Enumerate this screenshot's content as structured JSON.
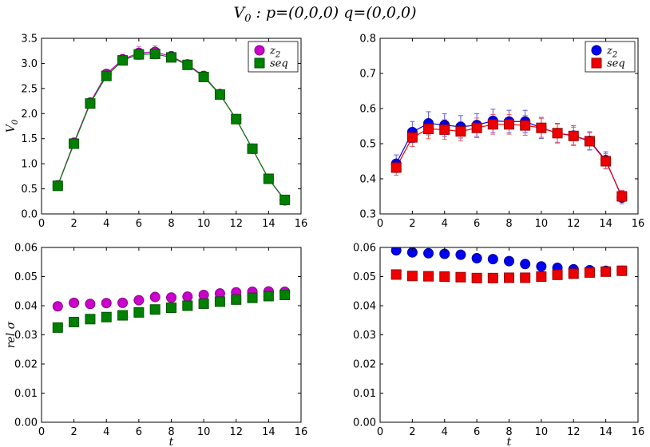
{
  "figure": {
    "title": "V₀ : p=(0,0,0)  q=(0,0,0)"
  },
  "chart_data": [
    {
      "type": "scatter",
      "panel": "top-left",
      "title": "",
      "xlabel": "",
      "ylabel": "V₀",
      "xlim": [
        0,
        16
      ],
      "ylim": [
        0,
        3.5
      ],
      "xticks": [
        0,
        2,
        4,
        6,
        8,
        10,
        12,
        14,
        16
      ],
      "yticks": [
        0.0,
        0.5,
        1.0,
        1.5,
        2.0,
        2.5,
        3.0,
        3.5
      ],
      "ytick_decimals": 1,
      "connect_lines": true,
      "legend": "top-right",
      "x": [
        1,
        2,
        3,
        4,
        5,
        6,
        7,
        8,
        9,
        10,
        11,
        12,
        13,
        14,
        15
      ],
      "series": [
        {
          "name": "z₂",
          "marker": "circle",
          "color": "#cc00cc",
          "values": [
            0.57,
            1.42,
            2.22,
            2.79,
            3.08,
            3.21,
            3.23,
            3.14,
            2.98,
            2.75,
            2.39,
            1.89,
            1.3,
            0.7,
            0.27
          ],
          "errors": [
            0.02,
            0.04,
            0.06,
            0.07,
            0.1,
            0.12,
            0.12,
            0.1,
            0.08,
            0.07,
            0.06,
            0.04,
            0.03,
            0.02,
            0.02
          ]
        },
        {
          "name": "seq",
          "marker": "square",
          "color": "#008000",
          "values": [
            0.56,
            1.4,
            2.2,
            2.75,
            3.06,
            3.18,
            3.19,
            3.12,
            2.97,
            2.73,
            2.38,
            1.89,
            1.3,
            0.7,
            0.28
          ],
          "errors": [
            0.02,
            0.04,
            0.05,
            0.06,
            0.08,
            0.1,
            0.1,
            0.09,
            0.07,
            0.06,
            0.05,
            0.04,
            0.03,
            0.02,
            0.02
          ]
        }
      ]
    },
    {
      "type": "scatter",
      "panel": "top-right",
      "title": "",
      "xlabel": "",
      "ylabel": "",
      "xlim": [
        0,
        16
      ],
      "ylim": [
        0.3,
        0.8
      ],
      "xticks": [
        0,
        2,
        4,
        6,
        8,
        10,
        12,
        14,
        16
      ],
      "yticks": [
        0.3,
        0.4,
        0.5,
        0.6,
        0.7,
        0.8
      ],
      "ytick_decimals": 1,
      "connect_lines": true,
      "legend": "top-right",
      "x": [
        1,
        2,
        3,
        4,
        5,
        6,
        7,
        8,
        9,
        10,
        11,
        12,
        13,
        14,
        15
      ],
      "series": [
        {
          "name": "z₂",
          "marker": "circle",
          "color": "#0000ee",
          "values": [
            0.443,
            0.533,
            0.558,
            0.553,
            0.548,
            0.553,
            0.565,
            0.563,
            0.563,
            0.545,
            0.53,
            0.523,
            0.508,
            0.453,
            0.347
          ],
          "errors": [
            0.025,
            0.03,
            0.033,
            0.032,
            0.032,
            0.032,
            0.033,
            0.032,
            0.032,
            0.03,
            0.028,
            0.028,
            0.026,
            0.024,
            0.018
          ]
        },
        {
          "name": "seq",
          "marker": "square",
          "color": "#ee0000",
          "values": [
            0.432,
            0.518,
            0.542,
            0.54,
            0.535,
            0.545,
            0.555,
            0.555,
            0.552,
            0.545,
            0.53,
            0.522,
            0.507,
            0.45,
            0.35
          ],
          "errors": [
            0.022,
            0.026,
            0.028,
            0.028,
            0.027,
            0.028,
            0.028,
            0.028,
            0.028,
            0.027,
            0.026,
            0.025,
            0.024,
            0.022,
            0.017
          ]
        }
      ]
    },
    {
      "type": "scatter",
      "panel": "bottom-left",
      "title": "",
      "xlabel": "t",
      "ylabel": "rel σ",
      "xlim": [
        0,
        16
      ],
      "ylim": [
        0,
        0.06
      ],
      "xticks": [
        0,
        2,
        4,
        6,
        8,
        10,
        12,
        14,
        16
      ],
      "yticks": [
        0.0,
        0.01,
        0.02,
        0.03,
        0.04,
        0.05,
        0.06
      ],
      "ytick_decimals": 2,
      "connect_lines": false,
      "legend": "",
      "x": [
        1,
        2,
        3,
        4,
        5,
        6,
        7,
        8,
        9,
        10,
        11,
        12,
        13,
        14,
        15
      ],
      "series": [
        {
          "name": "z₂",
          "marker": "circle",
          "color": "#cc00cc",
          "values": [
            0.0398,
            0.041,
            0.0406,
            0.0409,
            0.041,
            0.0419,
            0.043,
            0.0428,
            0.0431,
            0.0437,
            0.0442,
            0.0446,
            0.0448,
            0.0449,
            0.0448
          ]
        },
        {
          "name": "seq",
          "marker": "square",
          "color": "#008000",
          "values": [
            0.0325,
            0.0344,
            0.0354,
            0.0361,
            0.0367,
            0.0377,
            0.0387,
            0.0393,
            0.04,
            0.0407,
            0.0414,
            0.0421,
            0.0427,
            0.0433,
            0.0437
          ]
        }
      ]
    },
    {
      "type": "scatter",
      "panel": "bottom-right",
      "title": "",
      "xlabel": "t",
      "ylabel": "",
      "xlim": [
        0,
        16
      ],
      "ylim": [
        0,
        0.06
      ],
      "xticks": [
        0,
        2,
        4,
        6,
        8,
        10,
        12,
        14,
        16
      ],
      "yticks": [
        0.0,
        0.01,
        0.02,
        0.03,
        0.04,
        0.05,
        0.06
      ],
      "ytick_decimals": 2,
      "connect_lines": false,
      "legend": "",
      "x": [
        1,
        2,
        3,
        4,
        5,
        6,
        7,
        8,
        9,
        10,
        11,
        12,
        13,
        14,
        15
      ],
      "series": [
        {
          "name": "z₂",
          "marker": "circle",
          "color": "#0000ee",
          "values": [
            0.059,
            0.0583,
            0.058,
            0.0578,
            0.0575,
            0.0563,
            0.056,
            0.0553,
            0.0543,
            0.0535,
            0.053,
            0.0525,
            0.0522,
            0.052,
            0.052
          ]
        },
        {
          "name": "seq",
          "marker": "square",
          "color": "#ee0000",
          "values": [
            0.0507,
            0.0502,
            0.0501,
            0.05,
            0.0498,
            0.0495,
            0.0495,
            0.0496,
            0.0496,
            0.05,
            0.0506,
            0.051,
            0.0514,
            0.0517,
            0.052
          ]
        }
      ]
    }
  ]
}
